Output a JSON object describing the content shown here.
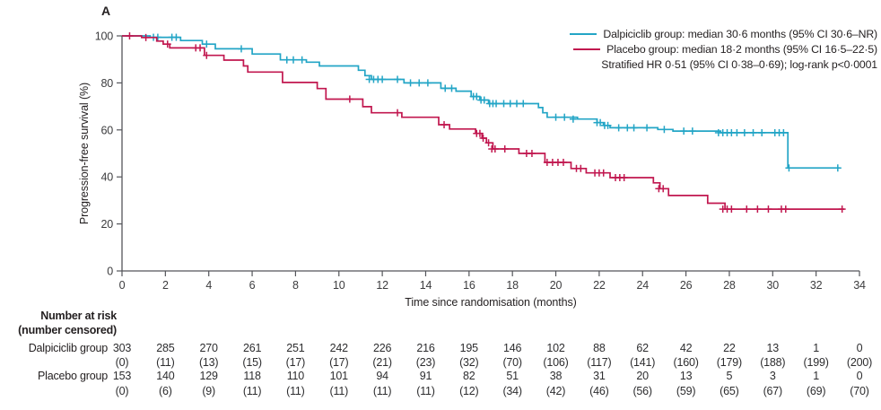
{
  "figure": {
    "panel_label": "A"
  },
  "chart_data": {
    "type": "line",
    "subtype": "kaplan-meier-step",
    "title": "",
    "xlabel": "Time since randomisation (months)",
    "ylabel": "Progression-free survival (%)",
    "xlim": [
      0,
      34
    ],
    "ylim": [
      0,
      100
    ],
    "xticks": [
      0,
      2,
      4,
      6,
      8,
      10,
      12,
      14,
      16,
      18,
      20,
      22,
      24,
      26,
      28,
      30,
      32,
      34
    ],
    "yticks": [
      0,
      20,
      40,
      60,
      80,
      100
    ],
    "grid": "off",
    "legend_position": "top-right",
    "annotation": "Stratified HR 0·51 (95% CI 0·38–0·69); log-rank p<0·0001",
    "series": [
      {
        "name": "Dalpiciclib group",
        "label": "Dalpiciclib group: median 30·6 months (95% CI 30·6–NR)",
        "color": "#23a5c6",
        "steps": [
          [
            0,
            100
          ],
          [
            1.3,
            99.4
          ],
          [
            2.7,
            98
          ],
          [
            3.7,
            96.5
          ],
          [
            4.3,
            94.5
          ],
          [
            6,
            92.3
          ],
          [
            7.3,
            89.8
          ],
          [
            8.5,
            88.8
          ],
          [
            9.1,
            87.2
          ],
          [
            10.9,
            85.4
          ],
          [
            11.2,
            83.1
          ],
          [
            11.5,
            81.5
          ],
          [
            13,
            80
          ],
          [
            14.7,
            77.7
          ],
          [
            15.4,
            76.5
          ],
          [
            16.1,
            74.2
          ],
          [
            16.5,
            72.7
          ],
          [
            16.9,
            71.2
          ],
          [
            19.2,
            69.5
          ],
          [
            19.4,
            67.3
          ],
          [
            19.6,
            65.4
          ],
          [
            21,
            64.6
          ],
          [
            21.9,
            63.1
          ],
          [
            22.2,
            61.9
          ],
          [
            22.5,
            60.9
          ],
          [
            24.7,
            60.2
          ],
          [
            25.4,
            59.5
          ],
          [
            27.6,
            58.8
          ],
          [
            30.7,
            43.8
          ],
          [
            33.1,
            43.8
          ]
        ],
        "censors": [
          [
            1.45,
            99.4
          ],
          [
            1.65,
            99.4
          ],
          [
            2.3,
            99.4
          ],
          [
            2.5,
            99.4
          ],
          [
            3.9,
            96.5
          ],
          [
            5.5,
            94.5
          ],
          [
            7.6,
            89.8
          ],
          [
            7.9,
            89.8
          ],
          [
            8.3,
            89.8
          ],
          [
            11.4,
            81.5
          ],
          [
            11.6,
            81.5
          ],
          [
            11.8,
            81.5
          ],
          [
            12,
            81.5
          ],
          [
            12.7,
            81.5
          ],
          [
            13.3,
            80
          ],
          [
            13.7,
            80
          ],
          [
            14.1,
            80
          ],
          [
            14.9,
            77.7
          ],
          [
            15.2,
            77.7
          ],
          [
            16.2,
            74.2
          ],
          [
            16.35,
            74.2
          ],
          [
            16.55,
            72.7
          ],
          [
            16.7,
            72.7
          ],
          [
            16.95,
            71.2
          ],
          [
            17.1,
            71.2
          ],
          [
            17.25,
            71.2
          ],
          [
            17.6,
            71.2
          ],
          [
            17.9,
            71.2
          ],
          [
            18.2,
            71.2
          ],
          [
            18.5,
            71.2
          ],
          [
            20,
            65.4
          ],
          [
            20.4,
            65.4
          ],
          [
            20.8,
            64.6
          ],
          [
            21.9,
            63.1
          ],
          [
            22.05,
            63.1
          ],
          [
            22.25,
            61.9
          ],
          [
            22.4,
            61.9
          ],
          [
            22.9,
            60.9
          ],
          [
            23.3,
            60.9
          ],
          [
            23.6,
            60.9
          ],
          [
            24.2,
            60.9
          ],
          [
            25,
            60.2
          ],
          [
            25.9,
            59.5
          ],
          [
            26.3,
            59.5
          ],
          [
            27.5,
            58.8
          ],
          [
            27.7,
            58.8
          ],
          [
            27.9,
            58.8
          ],
          [
            28.1,
            58.8
          ],
          [
            28.35,
            58.8
          ],
          [
            28.7,
            58.8
          ],
          [
            29.1,
            58.8
          ],
          [
            29.5,
            58.8
          ],
          [
            30.1,
            58.8
          ],
          [
            30.3,
            58.8
          ],
          [
            30.5,
            58.8
          ],
          [
            30.75,
            43.8
          ],
          [
            33,
            43.8
          ]
        ]
      },
      {
        "name": "Placebo group",
        "label": "Placebo group: median 18·2 months (95% CI 16·5–22·5)",
        "color": "#c1174f",
        "steps": [
          [
            0,
            100
          ],
          [
            0.9,
            99.3
          ],
          [
            1.6,
            97.8
          ],
          [
            1.9,
            96.5
          ],
          [
            2.2,
            94.9
          ],
          [
            3.8,
            91.7
          ],
          [
            4.7,
            89.7
          ],
          [
            5.6,
            87.2
          ],
          [
            5.8,
            84.6
          ],
          [
            7.4,
            80.2
          ],
          [
            9,
            77.6
          ],
          [
            9.4,
            73.1
          ],
          [
            11.1,
            69.9
          ],
          [
            11.5,
            67.3
          ],
          [
            12.9,
            65.4
          ],
          [
            14.6,
            62.2
          ],
          [
            15.1,
            60.4
          ],
          [
            16.3,
            58.5
          ],
          [
            16.6,
            56.5
          ],
          [
            16.8,
            54.5
          ],
          [
            17.1,
            51.9
          ],
          [
            18.3,
            50
          ],
          [
            19.5,
            46.2
          ],
          [
            20.7,
            43.6
          ],
          [
            21.4,
            41.7
          ],
          [
            22.5,
            39.7
          ],
          [
            24.5,
            37.5
          ],
          [
            24.8,
            35
          ],
          [
            25.2,
            32.1
          ],
          [
            27,
            28.8
          ],
          [
            27.8,
            26.3
          ],
          [
            33.3,
            26.3
          ]
        ],
        "censors": [
          [
            0.35,
            100
          ],
          [
            1.1,
            99.3
          ],
          [
            2.1,
            96.5
          ],
          [
            3.4,
            94.9
          ],
          [
            3.6,
            94.9
          ],
          [
            3.9,
            91.7
          ],
          [
            10.5,
            73.1
          ],
          [
            12.7,
            67.3
          ],
          [
            14.85,
            62.2
          ],
          [
            16.35,
            58.5
          ],
          [
            16.5,
            58.5
          ],
          [
            16.65,
            56.5
          ],
          [
            16.9,
            54.5
          ],
          [
            17.05,
            51.9
          ],
          [
            17.2,
            51.9
          ],
          [
            17.65,
            51.9
          ],
          [
            18.65,
            50
          ],
          [
            18.9,
            50
          ],
          [
            19.6,
            46.2
          ],
          [
            19.85,
            46.2
          ],
          [
            20.1,
            46.2
          ],
          [
            20.35,
            46.2
          ],
          [
            20.95,
            43.6
          ],
          [
            21.15,
            43.6
          ],
          [
            21.8,
            41.7
          ],
          [
            22,
            41.7
          ],
          [
            22.2,
            41.7
          ],
          [
            22.75,
            39.7
          ],
          [
            22.95,
            39.7
          ],
          [
            23.15,
            39.7
          ],
          [
            24.75,
            35
          ],
          [
            24.95,
            35
          ],
          [
            27.7,
            26.3
          ],
          [
            27.9,
            26.3
          ],
          [
            28.1,
            26.3
          ],
          [
            28.8,
            26.3
          ],
          [
            29.3,
            26.3
          ],
          [
            29.8,
            26.3
          ],
          [
            30.4,
            26.3
          ],
          [
            30.6,
            26.3
          ],
          [
            33.2,
            26.3
          ]
        ]
      }
    ],
    "risk_table": {
      "header": [
        "Number at risk",
        "(number censored)"
      ],
      "times": [
        0,
        2,
        4,
        6,
        8,
        10,
        12,
        14,
        16,
        18,
        20,
        22,
        24,
        26,
        28,
        30,
        32,
        34
      ],
      "rows": [
        {
          "label": "Dalpiciclib group",
          "at_risk": [
            "303",
            "285",
            "270",
            "261",
            "251",
            "242",
            "226",
            "216",
            "195",
            "146",
            "102",
            "88",
            "62",
            "42",
            "22",
            "13",
            "1",
            "0"
          ],
          "censored": [
            "(0)",
            "(11)",
            "(13)",
            "(15)",
            "(17)",
            "(17)",
            "(21)",
            "(23)",
            "(32)",
            "(70)",
            "(106)",
            "(117)",
            "(141)",
            "(160)",
            "(179)",
            "(188)",
            "(199)",
            "(200)"
          ]
        },
        {
          "label": "Placebo group",
          "at_risk": [
            "153",
            "140",
            "129",
            "118",
            "110",
            "101",
            "94",
            "91",
            "82",
            "51",
            "38",
            "31",
            "20",
            "13",
            "5",
            "3",
            "1",
            "0"
          ],
          "censored": [
            "(0)",
            "(6)",
            "(9)",
            "(11)",
            "(11)",
            "(11)",
            "(11)",
            "(11)",
            "(12)",
            "(34)",
            "(42)",
            "(46)",
            "(56)",
            "(59)",
            "(65)",
            "(67)",
            "(69)",
            "(70)"
          ]
        }
      ]
    }
  }
}
